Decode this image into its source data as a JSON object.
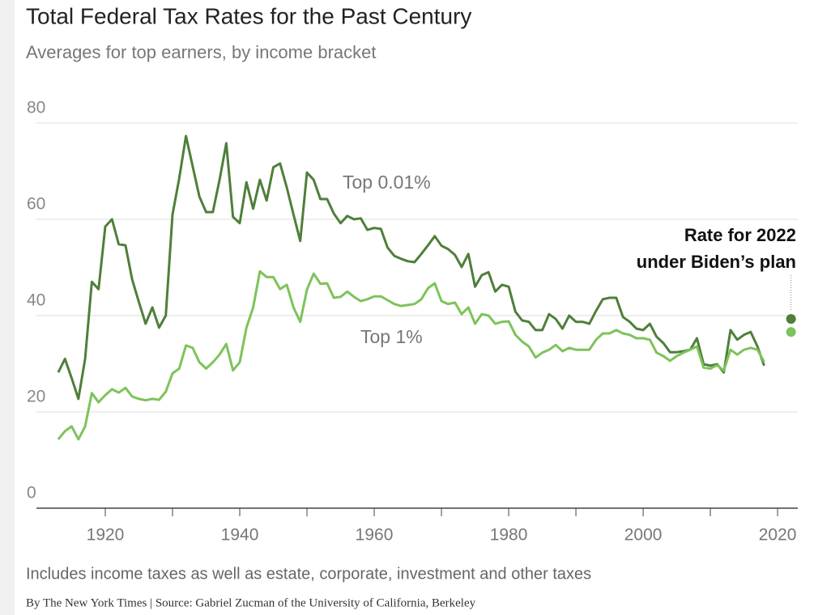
{
  "chart_data": {
    "type": "line",
    "title": "Total Federal Tax Rates for the Past Century",
    "subtitle": "Averages for top earners, by income bracket",
    "note": "Includes income taxes as well as estate, corporate, investment and other taxes",
    "source": "By The New York Times | Source: Gabriel Zucman of the University of California, Berkeley",
    "x": [
      1913,
      1914,
      1915,
      1916,
      1917,
      1918,
      1919,
      1920,
      1921,
      1922,
      1923,
      1924,
      1925,
      1926,
      1927,
      1928,
      1929,
      1930,
      1931,
      1932,
      1933,
      1934,
      1935,
      1936,
      1937,
      1938,
      1939,
      1940,
      1941,
      1942,
      1943,
      1944,
      1945,
      1946,
      1947,
      1948,
      1949,
      1950,
      1951,
      1952,
      1953,
      1954,
      1955,
      1956,
      1957,
      1958,
      1959,
      1960,
      1961,
      1962,
      1963,
      1964,
      1965,
      1966,
      1967,
      1968,
      1969,
      1970,
      1971,
      1972,
      1973,
      1974,
      1975,
      1976,
      1977,
      1978,
      1979,
      1980,
      1981,
      1982,
      1983,
      1984,
      1985,
      1986,
      1987,
      1988,
      1989,
      1990,
      1991,
      1992,
      1993,
      1994,
      1995,
      1996,
      1997,
      1998,
      1999,
      2000,
      2001,
      2002,
      2003,
      2004,
      2005,
      2006,
      2007,
      2008,
      2009,
      2010,
      2011,
      2012,
      2013,
      2014,
      2015,
      2016,
      2017,
      2018
    ],
    "series": [
      {
        "name": "Top 0.01%",
        "color": "#4f7f3a",
        "values": [
          28.2,
          31,
          27,
          22.7,
          31,
          47,
          45.5,
          58.5,
          60,
          54.8,
          54.6,
          47.5,
          42.8,
          38.3,
          41.7,
          37.5,
          40,
          61,
          68.5,
          77.3,
          71,
          64.7,
          61.5,
          61.5,
          68.2,
          75.8,
          60.5,
          59.2,
          67.7,
          62.2,
          68.2,
          63.9,
          70.8,
          71.6,
          66.6,
          61,
          55.5,
          69.7,
          68.2,
          64.2,
          64.2,
          61.2,
          59.2,
          60.7,
          60,
          60.2,
          57.8,
          58.2,
          58,
          54.1,
          52.4,
          51.8,
          51.3,
          51.1,
          52.8,
          54.6,
          56.5,
          54.5,
          53.8,
          52.6,
          50.1,
          52.8,
          46,
          48.4,
          49,
          45,
          46.4,
          46,
          40.8,
          39,
          38.7,
          37,
          37,
          40.3,
          39.3,
          37.3,
          40,
          38.7,
          38.7,
          38.3,
          41,
          43.4,
          43.7,
          43.7,
          39.7,
          38.7,
          37.3,
          37,
          38.3,
          35.6,
          34.3,
          32.4,
          32.4,
          32.6,
          32.9,
          35.3,
          29.9,
          29.6,
          29.9,
          28.2,
          37,
          35,
          36,
          36.6,
          33.6,
          29.6
        ]
      },
      {
        "name": "Top 1%",
        "color": "#7dc35a",
        "values": [
          14.3,
          16,
          17,
          14.3,
          17,
          23.9,
          22,
          23.5,
          24.7,
          24,
          25,
          23.2,
          22.7,
          22.4,
          22.7,
          22.5,
          24.2,
          28,
          29,
          33.8,
          33.3,
          30.3,
          29,
          30.3,
          31.9,
          34.1,
          28.6,
          30.3,
          37.5,
          41.7,
          49.2,
          48,
          48,
          45.5,
          46.4,
          41.7,
          38.7,
          45.4,
          48.7,
          46.6,
          46.7,
          43.7,
          43.9,
          45,
          43.9,
          43,
          43.4,
          44,
          44,
          43.2,
          42.4,
          42,
          42.2,
          42.4,
          43.4,
          45.7,
          46.7,
          43,
          42.4,
          42.7,
          40.3,
          41.7,
          38.3,
          40.3,
          40,
          38.3,
          38.7,
          38.8,
          36,
          34.6,
          33.6,
          31.3,
          32.3,
          32.9,
          33.9,
          32.6,
          33.3,
          32.9,
          32.9,
          32.9,
          35,
          36.3,
          36.3,
          37,
          36.3,
          36,
          35.3,
          35.3,
          35,
          32.3,
          31.6,
          30.6,
          31.6,
          32.3,
          32.9,
          33.6,
          29.2,
          29,
          29.7,
          28.6,
          32.9,
          31.9,
          32.9,
          33.3,
          32.9,
          30.4
        ]
      }
    ],
    "annotation": {
      "lines": [
        "Rate for 2022",
        "under Biden’s plan"
      ],
      "x": 2022,
      "values": [
        39.3,
        36.6
      ]
    },
    "xlim": [
      1910,
      2023
    ],
    "xticks": [
      1920,
      1940,
      1960,
      1980,
      2000,
      2020
    ],
    "xminor_ticks": [
      1930,
      1950,
      1970,
      1990,
      2010
    ],
    "ylim": [
      0,
      80
    ],
    "yticks": [
      0,
      20,
      40,
      60,
      80
    ],
    "grid": true
  }
}
